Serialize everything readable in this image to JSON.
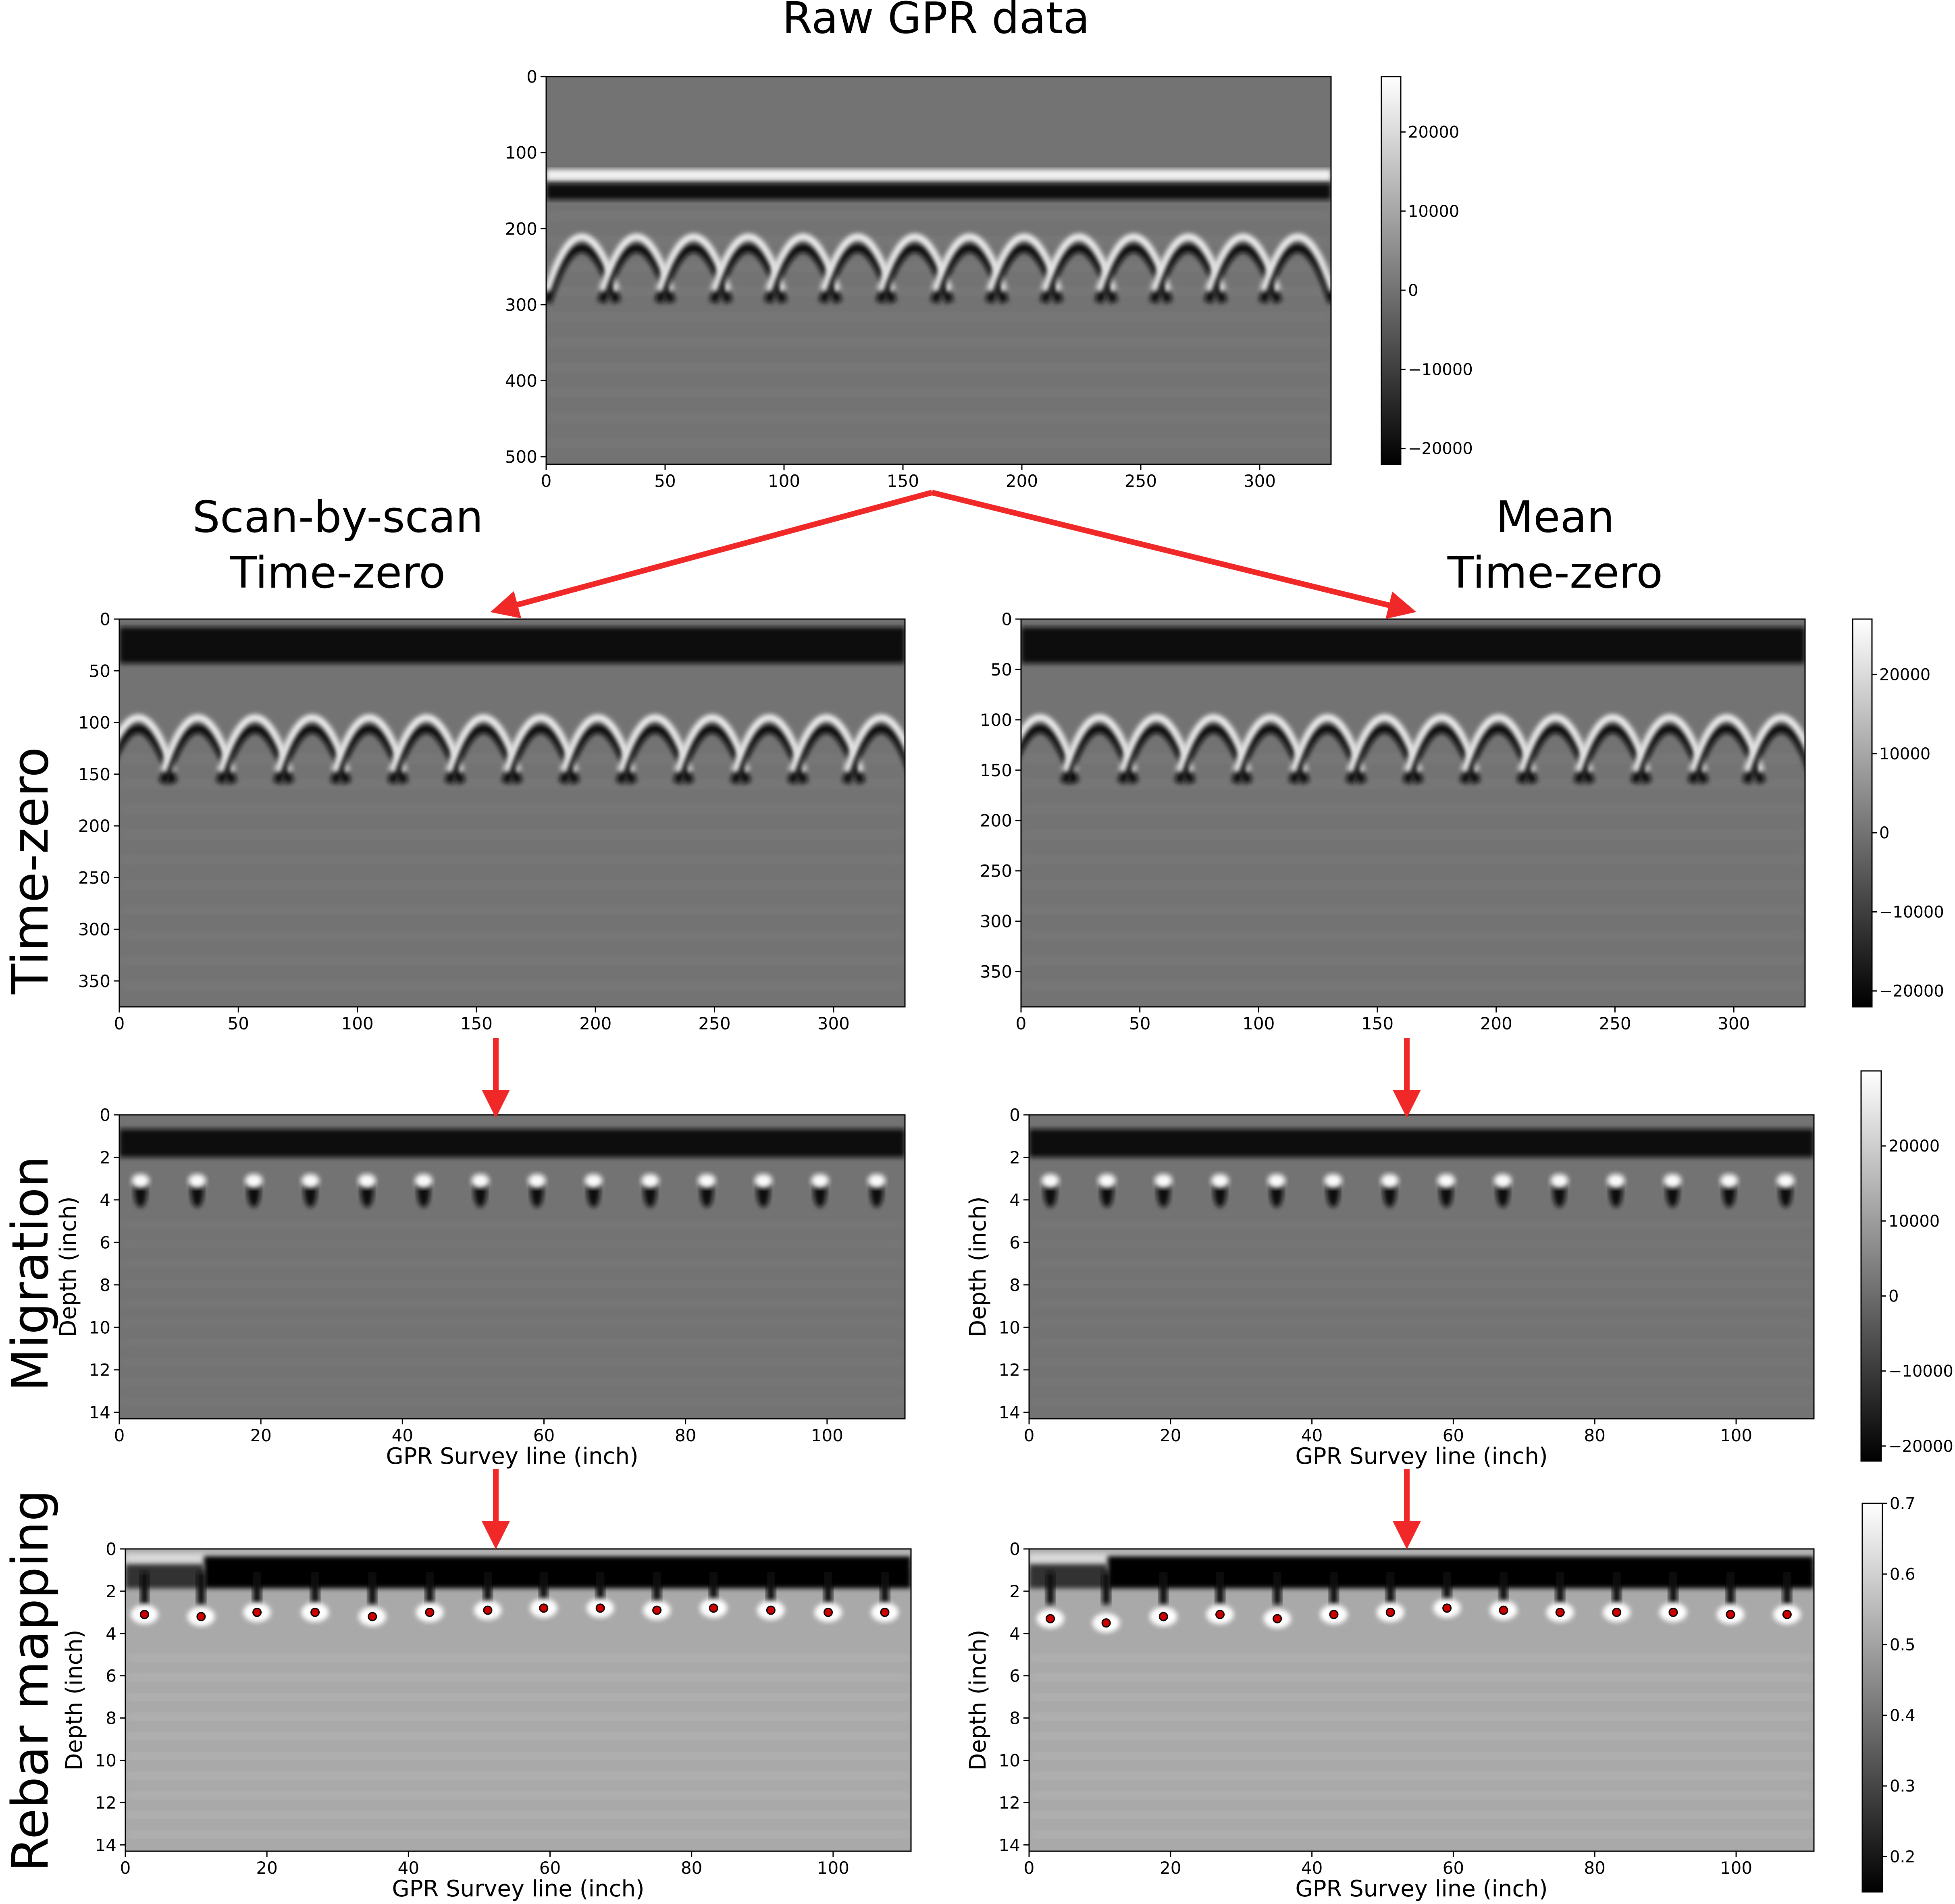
{
  "titles": {
    "raw": "Raw GPR data",
    "left_line1": "Scan-by-scan",
    "left_line2": "Time-zero",
    "right_line1": "Mean",
    "right_line2": "Time-zero"
  },
  "row_labels": {
    "timezero": "Time-zero",
    "migration": "Migration",
    "rebar": "Rebar mapping"
  },
  "colors": {
    "arrow": "#f02828",
    "rebar_marker": "#cc0000",
    "rebar_edge": "#000000"
  },
  "chart_data": [
    {
      "id": "raw",
      "type": "heatmap",
      "xlim": [
        0,
        330
      ],
      "ylim": [
        510,
        0
      ],
      "xticks": [
        "0",
        "50",
        "100",
        "150",
        "200",
        "250",
        "300"
      ],
      "yticks": [
        "0",
        "100",
        "200",
        "300",
        "400",
        "500"
      ],
      "xlabel": "",
      "ylabel": "",
      "surface": 138,
      "apex": 190,
      "hyperbola_x": [
        15,
        38,
        62,
        85,
        108,
        131,
        155,
        178,
        201,
        224,
        247,
        270,
        293,
        316
      ]
    },
    {
      "id": "tz_scan",
      "type": "heatmap",
      "xlim": [
        0,
        330
      ],
      "ylim": [
        375,
        0
      ],
      "xticks": [
        "0",
        "50",
        "100",
        "150",
        "200",
        "250",
        "300"
      ],
      "yticks": [
        "0",
        "50",
        "100",
        "150",
        "200",
        "250",
        "300",
        "350"
      ],
      "xlabel": "",
      "ylabel": "",
      "surface": 28,
      "apex": 80,
      "hyperbola_x": [
        8,
        33,
        57,
        81,
        105,
        129,
        153,
        177,
        201,
        225,
        249,
        273,
        297,
        320
      ]
    },
    {
      "id": "tz_mean",
      "type": "heatmap",
      "xlim": [
        0,
        330
      ],
      "ylim": [
        385,
        0
      ],
      "xticks": [
        "0",
        "50",
        "100",
        "150",
        "200",
        "250",
        "300"
      ],
      "yticks": [
        "0",
        "50",
        "100",
        "150",
        "200",
        "250",
        "300",
        "350"
      ],
      "xlabel": "",
      "ylabel": "",
      "surface": 28,
      "apex": 82,
      "hyperbola_x": [
        8,
        33,
        57,
        81,
        105,
        129,
        153,
        177,
        201,
        225,
        249,
        273,
        297,
        320
      ]
    },
    {
      "id": "mig_scan",
      "type": "heatmap",
      "xlim": [
        0,
        111
      ],
      "ylim": [
        14.3,
        0
      ],
      "xticks": [
        "0",
        "20",
        "40",
        "60",
        "80",
        "100"
      ],
      "yticks": [
        "0",
        "2",
        "4",
        "6",
        "8",
        "10",
        "12",
        "14"
      ],
      "xlabel": "GPR Survey line (inch)",
      "ylabel": "Depth (inch)",
      "surface": 1.2,
      "apex": 3.1,
      "hyperbola_x": [
        3,
        11,
        19,
        27,
        35,
        43,
        51,
        59,
        67,
        75,
        83,
        91,
        99,
        107
      ]
    },
    {
      "id": "mig_mean",
      "type": "heatmap",
      "xlim": [
        0,
        111
      ],
      "ylim": [
        14.3,
        0
      ],
      "xticks": [
        "0",
        "20",
        "40",
        "60",
        "80",
        "100"
      ],
      "yticks": [
        "0",
        "2",
        "4",
        "6",
        "8",
        "10",
        "12",
        "14"
      ],
      "xlabel": "GPR Survey line (inch)",
      "ylabel": "Depth (inch)",
      "surface": 1.2,
      "apex": 3.1,
      "hyperbola_x": [
        3,
        11,
        19,
        27,
        35,
        43,
        51,
        59,
        67,
        75,
        83,
        91,
        99,
        107
      ]
    },
    {
      "id": "rebar_scan",
      "type": "scatter",
      "xlim": [
        0,
        111
      ],
      "ylim": [
        14.3,
        0
      ],
      "xticks": [
        "0",
        "20",
        "40",
        "60",
        "80",
        "100"
      ],
      "yticks": [
        "0",
        "2",
        "4",
        "6",
        "8",
        "10",
        "12",
        "14"
      ],
      "xlabel": "GPR Survey line (inch)",
      "ylabel": "Depth (inch)",
      "surface": 1.1,
      "points": [
        {
          "x": 2.7,
          "y": 3.1
        },
        {
          "x": 10.7,
          "y": 3.2
        },
        {
          "x": 18.6,
          "y": 3.0
        },
        {
          "x": 26.8,
          "y": 3.0
        },
        {
          "x": 34.9,
          "y": 3.2
        },
        {
          "x": 43.0,
          "y": 3.0
        },
        {
          "x": 51.2,
          "y": 2.9
        },
        {
          "x": 59.1,
          "y": 2.8
        },
        {
          "x": 67.1,
          "y": 2.8
        },
        {
          "x": 75.1,
          "y": 2.9
        },
        {
          "x": 83.1,
          "y": 2.8
        },
        {
          "x": 91.2,
          "y": 2.9
        },
        {
          "x": 99.3,
          "y": 3.0
        },
        {
          "x": 107.3,
          "y": 3.0
        }
      ]
    },
    {
      "id": "rebar_mean",
      "type": "scatter",
      "xlim": [
        0,
        111
      ],
      "ylim": [
        14.3,
        0
      ],
      "xticks": [
        "0",
        "20",
        "40",
        "60",
        "80",
        "100"
      ],
      "yticks": [
        "0",
        "2",
        "4",
        "6",
        "8",
        "10",
        "12",
        "14"
      ],
      "xlabel": "GPR Survey line (inch)",
      "ylabel": "Depth (inch)",
      "surface": 1.1,
      "points": [
        {
          "x": 3.0,
          "y": 3.3
        },
        {
          "x": 10.9,
          "y": 3.5
        },
        {
          "x": 19.0,
          "y": 3.2
        },
        {
          "x": 27.0,
          "y": 3.1
        },
        {
          "x": 35.1,
          "y": 3.3
        },
        {
          "x": 43.1,
          "y": 3.1
        },
        {
          "x": 51.1,
          "y": 3.0
        },
        {
          "x": 59.1,
          "y": 2.8
        },
        {
          "x": 67.1,
          "y": 2.9
        },
        {
          "x": 75.1,
          "y": 3.0
        },
        {
          "x": 83.1,
          "y": 3.0
        },
        {
          "x": 91.1,
          "y": 3.0
        },
        {
          "x": 99.2,
          "y": 3.1
        },
        {
          "x": 107.2,
          "y": 3.1
        }
      ]
    }
  ],
  "colorbars": [
    {
      "id": "cb_raw",
      "min": -22000,
      "max": 27000,
      "ticks": [
        "20000",
        "10000",
        "0",
        "−10000",
        "−20000"
      ],
      "values": [
        20000,
        10000,
        0,
        -10000,
        -20000
      ]
    },
    {
      "id": "cb_tz",
      "min": -22000,
      "max": 27000,
      "ticks": [
        "20000",
        "10000",
        "0",
        "−10000",
        "−20000"
      ],
      "values": [
        20000,
        10000,
        0,
        -10000,
        -20000
      ]
    },
    {
      "id": "cb_mig",
      "min": -22000,
      "max": 30000,
      "ticks": [
        "20000",
        "10000",
        "0",
        "−10000",
        "−20000"
      ],
      "values": [
        20000,
        10000,
        0,
        -10000,
        -20000
      ]
    },
    {
      "id": "cb_rebar",
      "min": 0.15,
      "max": 0.7,
      "ticks": [
        "0.7",
        "0.6",
        "0.5",
        "0.4",
        "0.3",
        "0.2"
      ],
      "values": [
        0.7,
        0.6,
        0.5,
        0.4,
        0.3,
        0.2
      ]
    }
  ]
}
